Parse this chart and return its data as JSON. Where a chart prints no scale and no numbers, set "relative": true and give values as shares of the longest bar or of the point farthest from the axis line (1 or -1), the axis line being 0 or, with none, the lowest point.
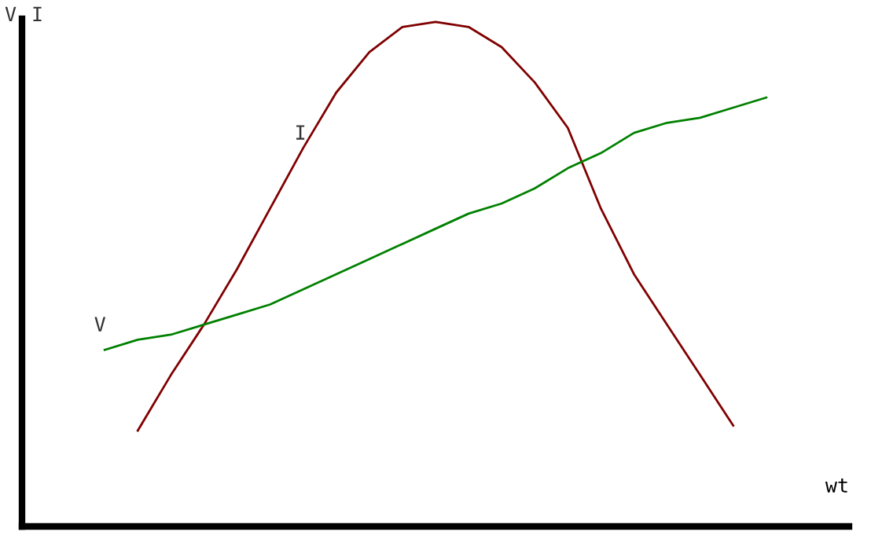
{
  "chart_data": {
    "type": "line",
    "relative": true,
    "xlabel": "wt",
    "annotations": [
      "V",
      "I"
    ],
    "line_style": "solid",
    "categories": [
      null,
      null,
      null,
      null,
      null,
      null,
      null,
      null,
      null,
      null,
      null,
      null,
      null,
      null,
      null,
      null,
      null,
      null,
      null,
      null,
      null
    ],
    "series": [
      {
        "name": "I",
        "color": "#800000",
        "values": [
          null,
          0.19,
          0.3,
          0.4,
          0.51,
          0.63,
          0.75,
          0.86,
          0.94,
          0.99,
          1,
          0.99,
          0.95,
          0.88,
          0.79,
          0.63,
          0.5,
          0.4,
          0.3,
          0.2,
          null
        ]
      },
      {
        "name": "V",
        "color": "#008000",
        "values": [
          0.35,
          0.37,
          0.38,
          0.4,
          0.42,
          0.44,
          0.47,
          0.5,
          0.53,
          0.56,
          0.59,
          0.62,
          0.64,
          0.67,
          0.71,
          0.74,
          0.78,
          0.8,
          0.81,
          0.83,
          0.85
        ]
      }
    ]
  }
}
